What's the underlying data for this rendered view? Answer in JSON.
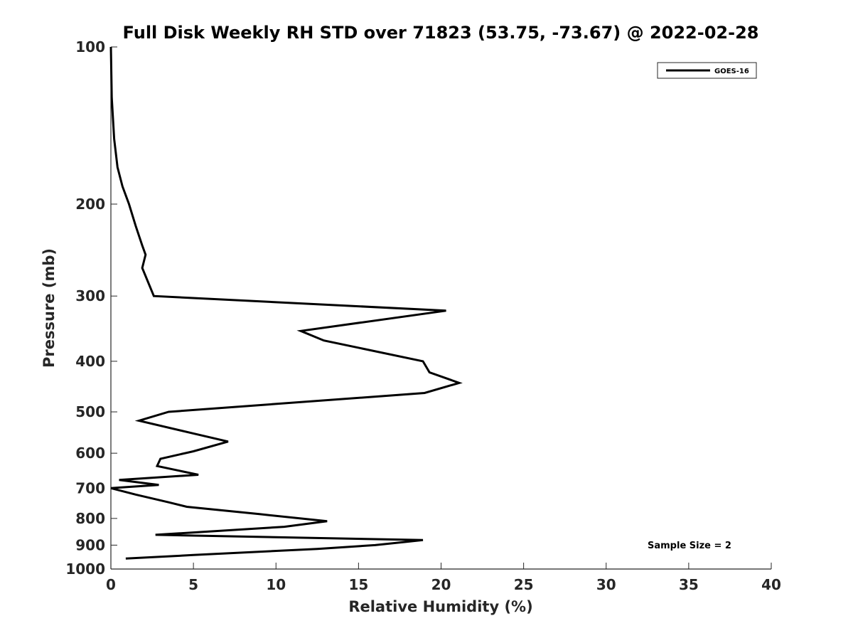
{
  "chart_data": {
    "type": "line",
    "title": "Full Disk Weekly RH STD over 71823 (53.75, -73.67) @ 2022-02-28",
    "xlabel": "Relative Humidity (%)",
    "ylabel": "Pressure (mb)",
    "xlim": [
      0,
      40
    ],
    "ylim": [
      100,
      1000
    ],
    "y_scale": "log",
    "y_reversed": true,
    "x_ticks": [
      0,
      5,
      10,
      15,
      20,
      25,
      30,
      35,
      40
    ],
    "y_ticks": [
      100,
      200,
      300,
      400,
      500,
      600,
      700,
      800,
      900,
      1000
    ],
    "grid": false,
    "legend": {
      "position": "top-right",
      "entries": [
        "GOES-16"
      ]
    },
    "annotation": "Sample Size = 2",
    "series": [
      {
        "name": "GOES-16",
        "color": "#000000",
        "points": [
          [
            0.0,
            100
          ],
          [
            0.05,
            125
          ],
          [
            0.2,
            150
          ],
          [
            0.4,
            170
          ],
          [
            0.7,
            185
          ],
          [
            1.1,
            200
          ],
          [
            1.5,
            220
          ],
          [
            1.9,
            240
          ],
          [
            2.1,
            250
          ],
          [
            1.9,
            265
          ],
          [
            2.6,
            300
          ],
          [
            20.3,
            320
          ],
          [
            11.5,
            350
          ],
          [
            12.9,
            365
          ],
          [
            18.9,
            400
          ],
          [
            19.3,
            420
          ],
          [
            21.1,
            440
          ],
          [
            19.0,
            460
          ],
          [
            3.5,
            500
          ],
          [
            1.7,
            520
          ],
          [
            5.0,
            550
          ],
          [
            7.1,
            570
          ],
          [
            5.0,
            595
          ],
          [
            3.0,
            615
          ],
          [
            2.8,
            635
          ],
          [
            5.3,
            660
          ],
          [
            0.5,
            675
          ],
          [
            2.9,
            690
          ],
          [
            0.0,
            700
          ],
          [
            1.5,
            720
          ],
          [
            3.5,
            745
          ],
          [
            4.6,
            760
          ],
          [
            9.0,
            785
          ],
          [
            13.1,
            810
          ],
          [
            10.5,
            830
          ],
          [
            2.7,
            860
          ],
          [
            18.9,
            880
          ],
          [
            16.0,
            900
          ],
          [
            12.5,
            915
          ],
          [
            5.0,
            940
          ],
          [
            0.9,
            955
          ]
        ]
      }
    ]
  }
}
